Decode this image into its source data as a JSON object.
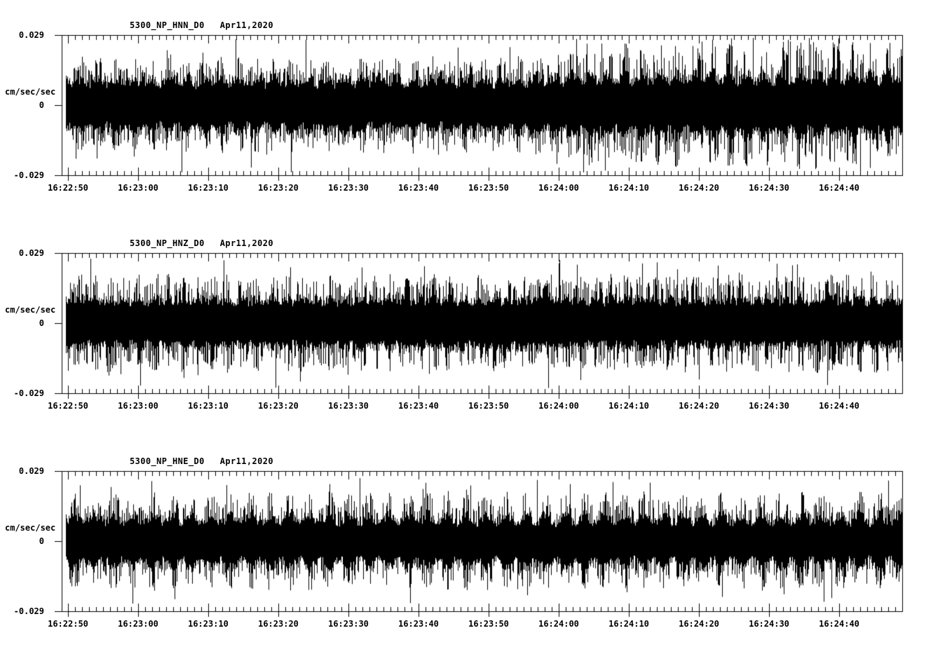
{
  "app": {
    "background": "#ffffff",
    "foreground": "#000000"
  },
  "chart_data": [
    {
      "type": "line",
      "kind": "seismogram-waveform",
      "title": "5300_NP_HNN_D0",
      "date_label": "Apr11,2020",
      "ylabel": "cm/sec/sec",
      "ylim": [
        -0.029,
        0.029
      ],
      "ytick_values": [
        0.029,
        0,
        -0.029
      ],
      "ytick_labels": [
        "0.029",
        "0",
        "-0.029"
      ],
      "x_start": "16:22:49",
      "x_end": "16:24:49",
      "x_major_tick_interval_s": 10,
      "x_minor_tick_interval_s": 1,
      "xtick_labels": [
        "16:22:50",
        "16:23:00",
        "16:23:10",
        "16:23:20",
        "16:23:30",
        "16:23:40",
        "16:23:50",
        "16:24:00",
        "16:24:10",
        "16:24:20",
        "16:24:30",
        "16:24:40"
      ],
      "grid": false,
      "legend": false,
      "color": "#000000",
      "waveform": {
        "description": "continuous accelerometer noise; amplitude increases slightly after 16:24:00",
        "seed": 11,
        "burst_period_s": 2.5,
        "burst_depth": 0.15,
        "abs_max": 0.0282,
        "envelope": [
          {
            "f": 0.0,
            "core": 0.011,
            "peak": 0.0175
          },
          {
            "f": 0.55,
            "core": 0.0112,
            "peak": 0.0178
          },
          {
            "f": 0.62,
            "core": 0.0128,
            "peak": 0.0225
          },
          {
            "f": 1.0,
            "core": 0.0132,
            "peak": 0.024
          }
        ]
      }
    },
    {
      "type": "line",
      "kind": "seismogram-waveform",
      "title": "5300_NP_HNZ_D0",
      "date_label": "Apr11,2020",
      "ylabel": "cm/sec/sec",
      "ylim": [
        -0.029,
        0.029
      ],
      "ytick_values": [
        0.029,
        0,
        -0.029
      ],
      "ytick_labels": [
        "0.029",
        "0",
        "-0.029"
      ],
      "x_start": "16:22:49",
      "x_end": "16:24:49",
      "x_major_tick_interval_s": 10,
      "x_minor_tick_interval_s": 1,
      "xtick_labels": [
        "16:22:50",
        "16:23:00",
        "16:23:10",
        "16:23:20",
        "16:23:30",
        "16:23:40",
        "16:23:50",
        "16:24:00",
        "16:24:10",
        "16:24:20",
        "16:24:30",
        "16:24:40"
      ],
      "grid": false,
      "legend": false,
      "color": "#000000",
      "waveform": {
        "description": "continuous accelerometer noise; stationary amplitude for full window",
        "seed": 22,
        "burst_period_s": 2.1,
        "burst_depth": 0.1,
        "abs_max": 0.027,
        "envelope": [
          {
            "f": 0.0,
            "core": 0.0106,
            "peak": 0.019
          },
          {
            "f": 0.5,
            "core": 0.0108,
            "peak": 0.0185
          },
          {
            "f": 1.0,
            "core": 0.0106,
            "peak": 0.019
          }
        ]
      }
    },
    {
      "type": "line",
      "kind": "seismogram-waveform",
      "title": "5300_NP_HNE_D0",
      "date_label": "Apr11,2020",
      "ylabel": "cm/sec/sec",
      "ylim": [
        -0.029,
        0.029
      ],
      "ytick_values": [
        0.029,
        0,
        -0.029
      ],
      "ytick_labels": [
        "0.029",
        "0",
        "-0.029"
      ],
      "x_start": "16:22:49",
      "x_end": "16:24:49",
      "x_major_tick_interval_s": 10,
      "x_minor_tick_interval_s": 1,
      "xtick_labels": [
        "16:22:50",
        "16:23:00",
        "16:23:10",
        "16:23:20",
        "16:23:30",
        "16:23:40",
        "16:23:50",
        "16:24:00",
        "16:24:10",
        "16:24:20",
        "16:24:30",
        "16:24:40"
      ],
      "grid": false,
      "legend": false,
      "color": "#000000",
      "waveform": {
        "description": "continuous accelerometer noise; stationary amplitude, burst-like texture",
        "seed": 33,
        "burst_period_s": 2.8,
        "burst_depth": 0.2,
        "abs_max": 0.0262,
        "envelope": [
          {
            "f": 0.0,
            "core": 0.0105,
            "peak": 0.0175
          },
          {
            "f": 1.0,
            "core": 0.0103,
            "peak": 0.0172
          }
        ]
      }
    }
  ]
}
